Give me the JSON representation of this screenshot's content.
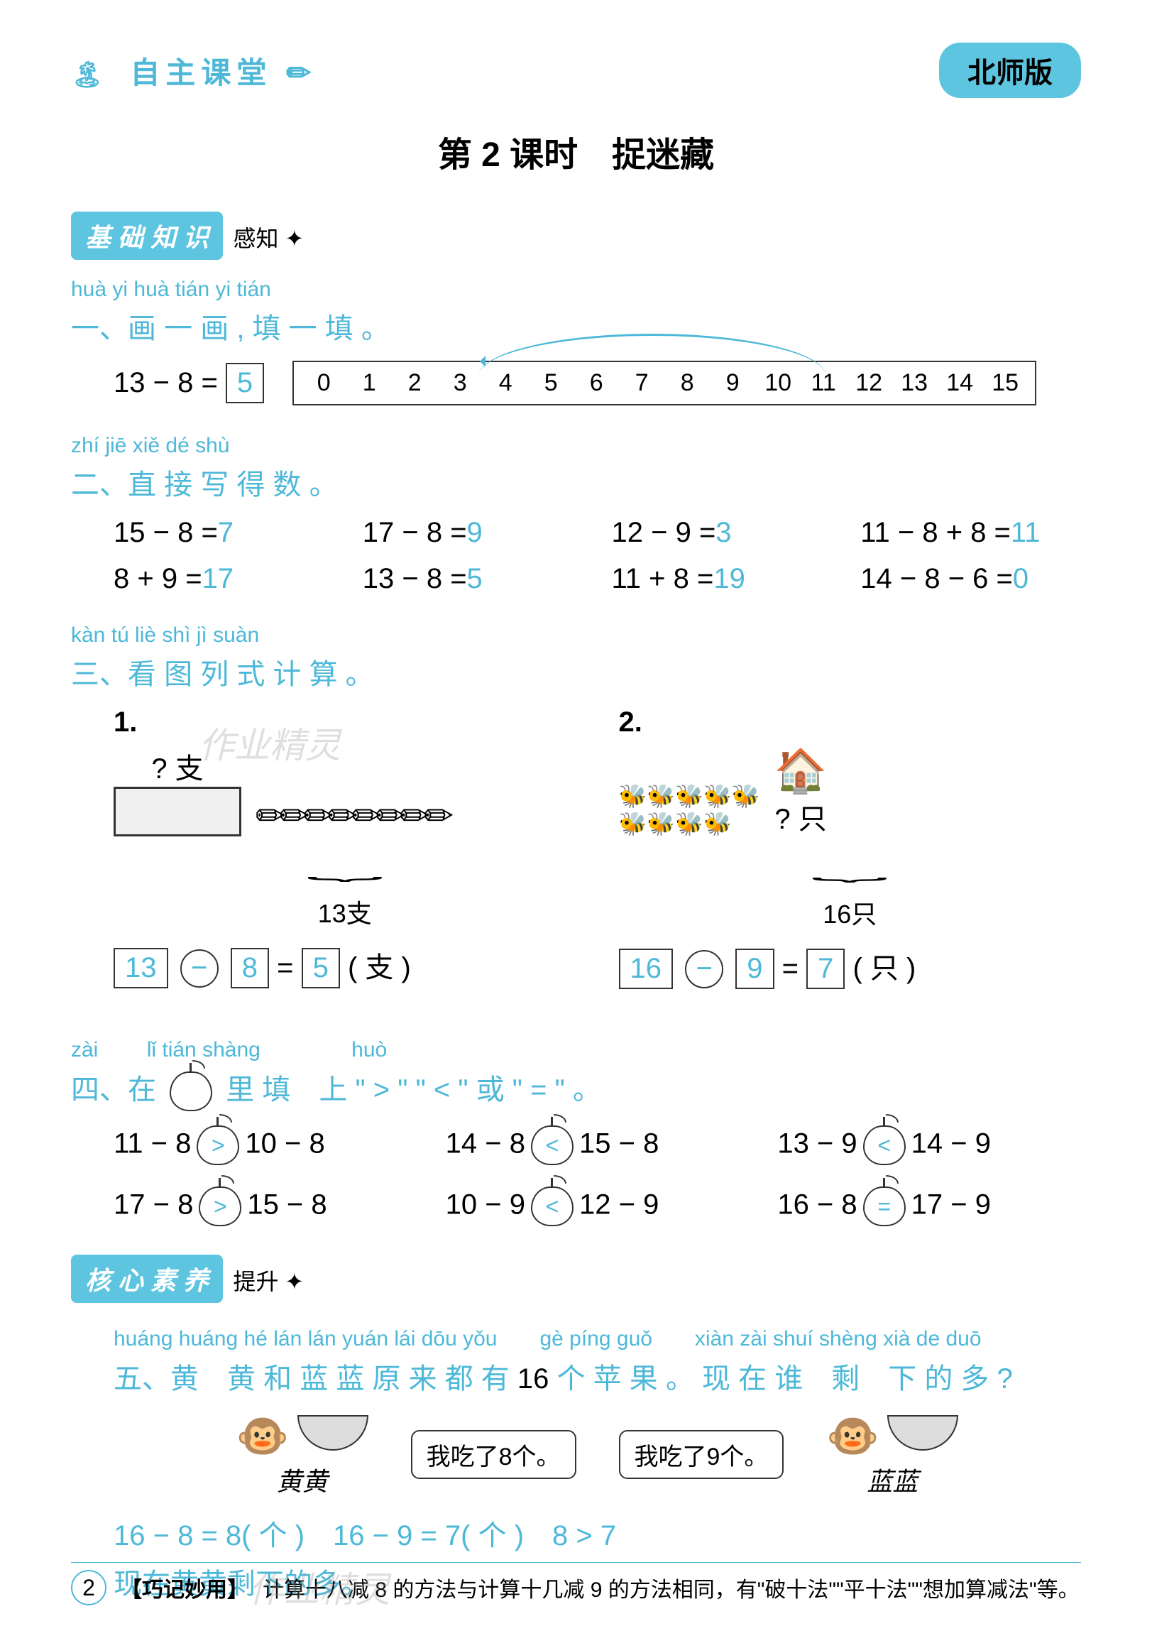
{
  "header": {
    "left_icon": "🏝",
    "left_title": "自主课堂",
    "pencil_icon": "✏",
    "right_badge": "北师版"
  },
  "title": "第 2 课时　捉迷藏",
  "badge1": {
    "text": "基 础 知 识",
    "suffix": "感知 ✦"
  },
  "q1": {
    "pinyin": "huà yi huà  tián yi tián",
    "heading": "一、画 一 画 , 填 一 填 。",
    "eq_left": "13 − 8 =",
    "eq_answer": "5",
    "numline": [
      "0",
      "1",
      "2",
      "3",
      "4",
      "5",
      "6",
      "7",
      "8",
      "9",
      "10",
      "11",
      "12",
      "13",
      "14",
      "15"
    ]
  },
  "q2": {
    "pinyin": "zhí jiē xiě dé shù",
    "heading": "二、直 接 写 得 数 。",
    "items": [
      {
        "q": "15 − 8 =",
        "a": "7"
      },
      {
        "q": "17 − 8 =",
        "a": "9"
      },
      {
        "q": "12 − 9 =",
        "a": "3"
      },
      {
        "q": "11 − 8 + 8 =",
        "a": "11"
      },
      {
        "q": "8 + 9 =",
        "a": "17"
      },
      {
        "q": "13 − 8 =",
        "a": "5"
      },
      {
        "q": "11 + 8 =",
        "a": "19"
      },
      {
        "q": "14 − 8 − 6 =",
        "a": "0"
      }
    ]
  },
  "q3": {
    "pinyin": "kàn tú liè shì jì suàn",
    "heading": "三、看 图 列 式 计 算 。",
    "p1": {
      "num": "1.",
      "unknown": "? 支",
      "total": "13支",
      "a": "13",
      "op": "−",
      "b": "8",
      "eq": "=",
      "c": "5",
      "unit": "( 支 )"
    },
    "p2": {
      "num": "2.",
      "unknown": "? 只",
      "total": "16只",
      "a": "16",
      "op": "−",
      "b": "9",
      "eq": "=",
      "c": "7",
      "unit": "( 只 )"
    }
  },
  "q4": {
    "pinyin_pre": "zài",
    "pinyin_mid": "lǐ tián shàng",
    "pinyin_end": "huò",
    "heading_pre": "四、在",
    "heading_mid": "里 填　上 \" > \" \" < \" 或 \" = \" 。",
    "items": [
      {
        "l": "11 − 8",
        "s": ">",
        "r": "10 − 8"
      },
      {
        "l": "14 − 8",
        "s": "<",
        "r": "15 − 8"
      },
      {
        "l": "13 − 9",
        "s": "<",
        "r": "14 − 9"
      },
      {
        "l": "17 − 8",
        "s": ">",
        "r": "15 − 8"
      },
      {
        "l": "10 − 9",
        "s": "<",
        "r": "12 − 9"
      },
      {
        "l": "16 − 8",
        "s": "=",
        "r": "17 − 9"
      }
    ]
  },
  "badge2": {
    "text": "核 心 素 养",
    "suffix": "提升 ✦"
  },
  "q5": {
    "pinyin": "huáng huáng hé lán lán yuán lái dōu yǒu　　gè píng guǒ　　xiàn zài shuí shèng xià de duō",
    "heading_a": "五、黄　黄 和 蓝 蓝 原 来 都 有 ",
    "heading_num": "16",
    "heading_b": " 个 苹 果 。 现 在 谁　剩　下 的 多 ?",
    "speech1": "我吃了8个。",
    "speech2": "我吃了9个。",
    "name1": "黄黄",
    "name2": "蓝蓝",
    "ans1": "16 − 8 = 8( 个 )　16 − 9 = 7( 个 )　8 > 7",
    "ans2": "现在黄黄剩下的多。"
  },
  "footer": {
    "page": "2",
    "tag": "【巧记妙用】",
    "text": "计算十八减 8 的方法与计算十几减 9 的方法相同，有\"破十法\"\"平十法\"\"想加算减法\"等。"
  },
  "watermark": "作业精灵",
  "colors": {
    "accent": "#4db8d8",
    "badge_bg": "#5ec5e0"
  }
}
